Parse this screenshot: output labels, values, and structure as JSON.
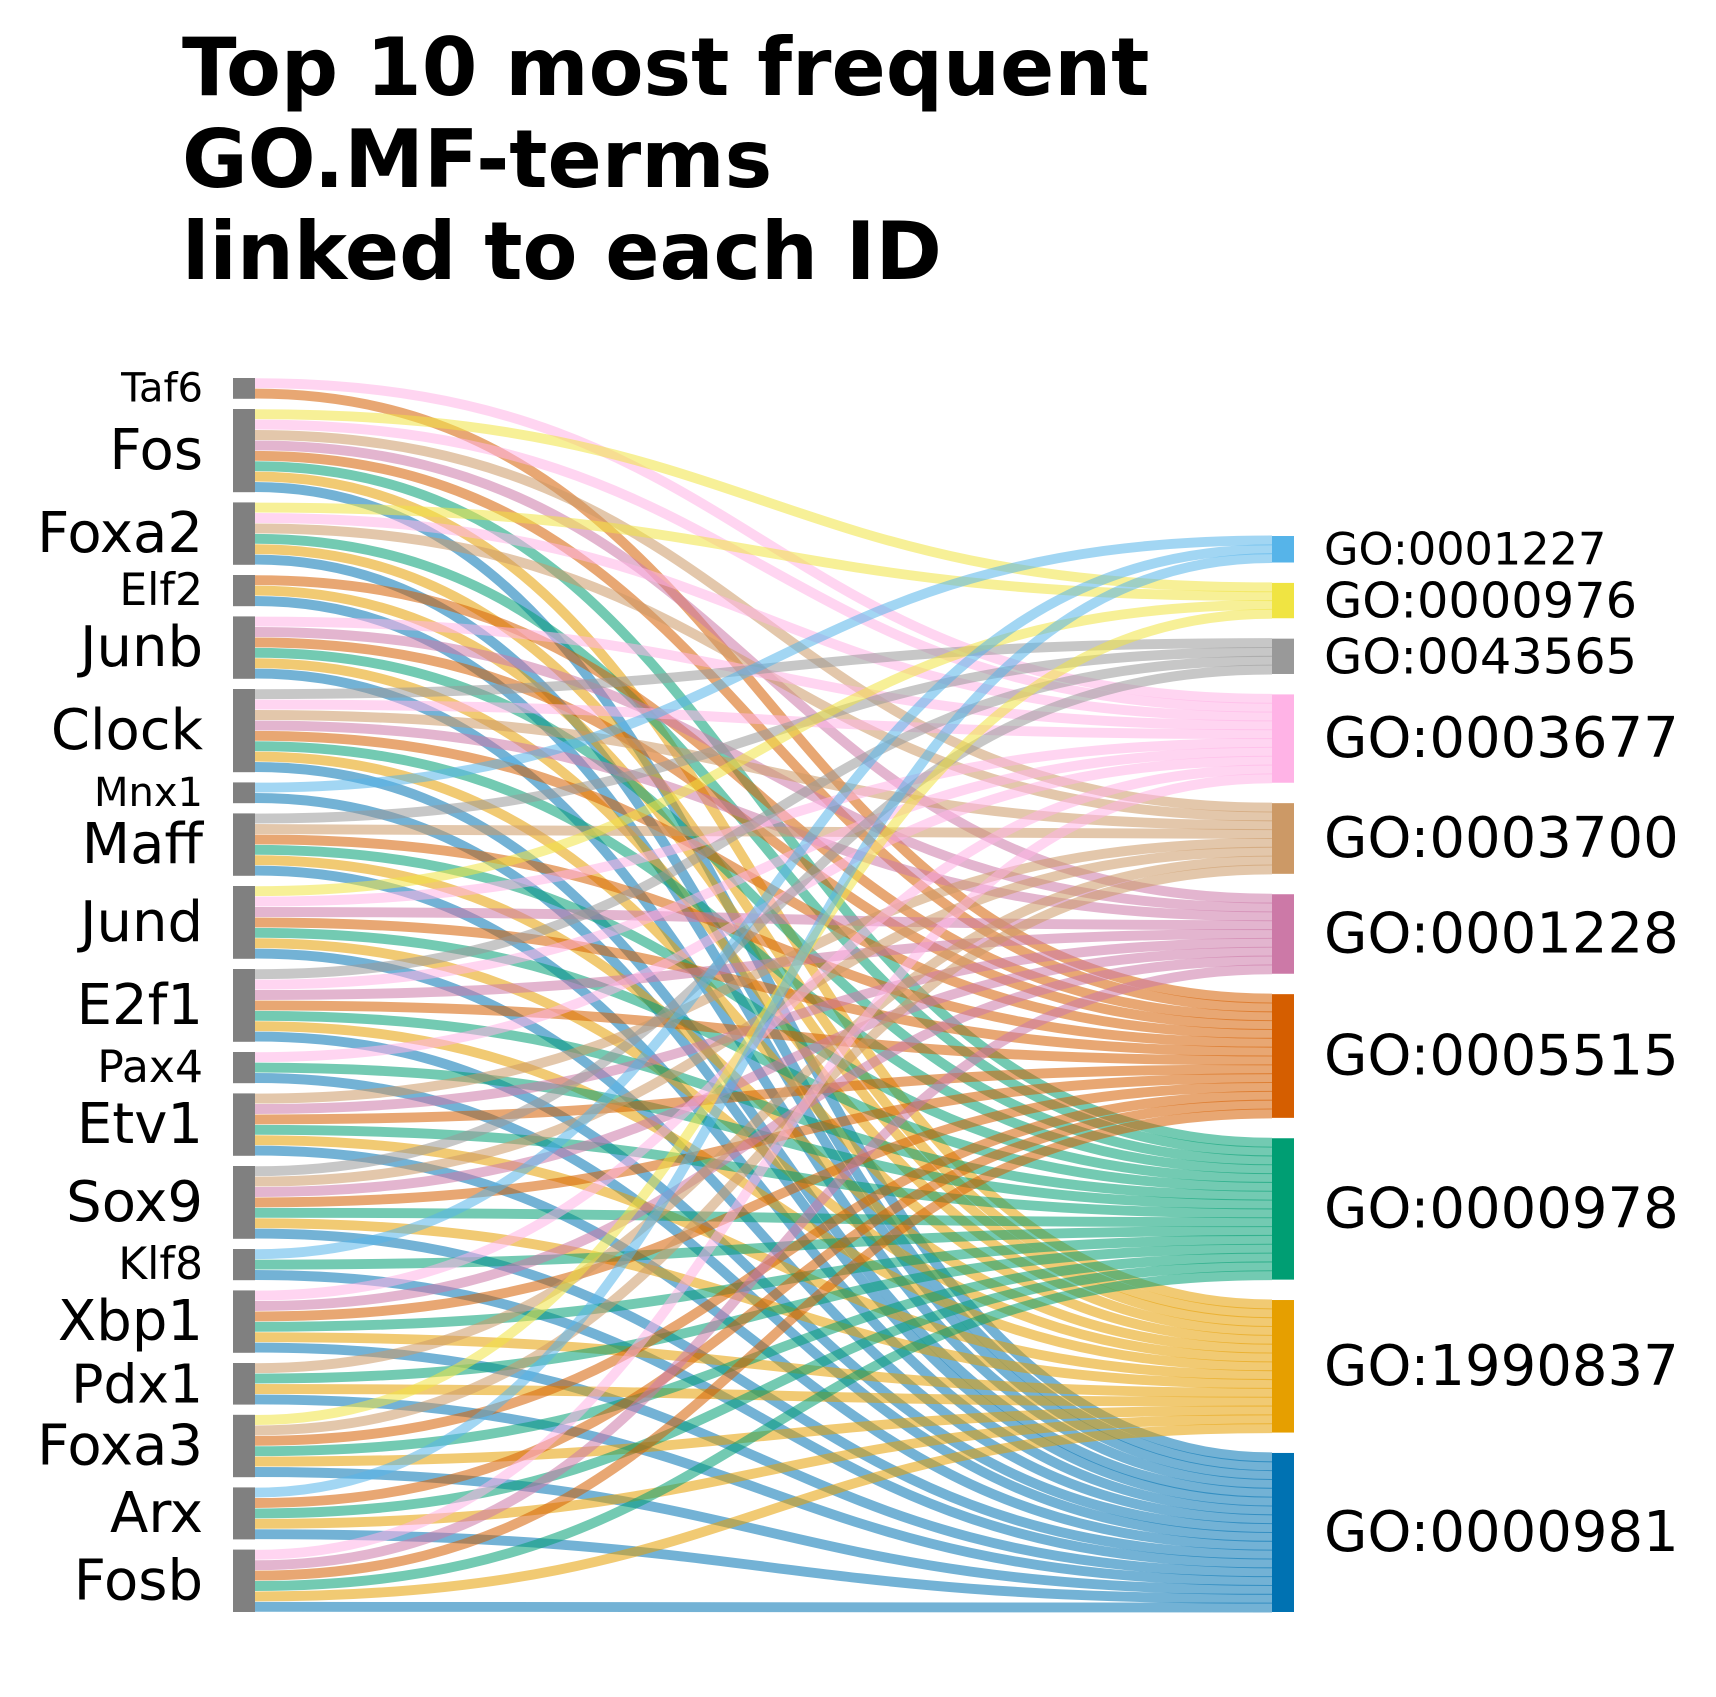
{
  "chart_data": {
    "type": "sankey",
    "title": "Top 10 most frequent\nGO.MF-terms\nlinked to each ID",
    "legend": "none",
    "grid": false,
    "source_color": "#808080",
    "sources": [
      "Taf6",
      "Fos",
      "Foxa2",
      "Elf2",
      "Junb",
      "Clock",
      "Mnx1",
      "Maff",
      "Jund",
      "E2f1",
      "Pax4",
      "Etv1",
      "Sox9",
      "Klf8",
      "Xbp1",
      "Pdx1",
      "Foxa3",
      "Arx",
      "Fosb"
    ],
    "targets": [
      {
        "name": "GO:0001227",
        "color": "#56B4E9"
      },
      {
        "name": "GO:0000976",
        "color": "#F0E442"
      },
      {
        "name": "GO:0043565",
        "color": "#999999"
      },
      {
        "name": "GO:0003677",
        "color": "#FFB3E6"
      },
      {
        "name": "GO:0003700",
        "color": "#CC9966"
      },
      {
        "name": "GO:0001228",
        "color": "#CC79A7"
      },
      {
        "name": "GO:0005515",
        "color": "#D55E00"
      },
      {
        "name": "GO:0000978",
        "color": "#009E73"
      },
      {
        "name": "GO:1990837",
        "color": "#E69F00"
      },
      {
        "name": "GO:0000981",
        "color": "#0072B2"
      }
    ],
    "links": [
      {
        "source": "Taf6",
        "targets": [
          "GO:0003677",
          "GO:0005515"
        ]
      },
      {
        "source": "Fos",
        "targets": [
          "GO:0000976",
          "GO:0003677",
          "GO:0003700",
          "GO:0001228",
          "GO:0005515",
          "GO:0000978",
          "GO:1990837",
          "GO:0000981"
        ]
      },
      {
        "source": "Foxa2",
        "targets": [
          "GO:0000976",
          "GO:0003677",
          "GO:0003700",
          "GO:0000978",
          "GO:1990837",
          "GO:0000981"
        ]
      },
      {
        "source": "Elf2",
        "targets": [
          "GO:0005515",
          "GO:1990837",
          "GO:0000981"
        ]
      },
      {
        "source": "Junb",
        "targets": [
          "GO:0003677",
          "GO:0001228",
          "GO:0005515",
          "GO:0000978",
          "GO:1990837",
          "GO:0000981"
        ]
      },
      {
        "source": "Clock",
        "targets": [
          "GO:0043565",
          "GO:0003677",
          "GO:0003700",
          "GO:0001228",
          "GO:0005515",
          "GO:0000978",
          "GO:1990837",
          "GO:0000981"
        ]
      },
      {
        "source": "Mnx1",
        "targets": [
          "GO:0001227",
          "GO:0000981"
        ]
      },
      {
        "source": "Maff",
        "targets": [
          "GO:0043565",
          "GO:0003700",
          "GO:0005515",
          "GO:0000978",
          "GO:1990837",
          "GO:0000981"
        ]
      },
      {
        "source": "Jund",
        "targets": [
          "GO:0000976",
          "GO:0003677",
          "GO:0001228",
          "GO:0005515",
          "GO:0000978",
          "GO:1990837",
          "GO:0000981"
        ]
      },
      {
        "source": "E2f1",
        "targets": [
          "GO:0043565",
          "GO:0003677",
          "GO:0001228",
          "GO:0005515",
          "GO:0000978",
          "GO:1990837",
          "GO:0000981"
        ]
      },
      {
        "source": "Pax4",
        "targets": [
          "GO:0003677",
          "GO:0000978",
          "GO:0000981"
        ]
      },
      {
        "source": "Etv1",
        "targets": [
          "GO:0003700",
          "GO:0001228",
          "GO:0005515",
          "GO:0000978",
          "GO:1990837",
          "GO:0000981"
        ]
      },
      {
        "source": "Sox9",
        "targets": [
          "GO:0043565",
          "GO:0003700",
          "GO:0001228",
          "GO:0005515",
          "GO:0000978",
          "GO:1990837",
          "GO:0000981"
        ]
      },
      {
        "source": "Klf8",
        "targets": [
          "GO:0001227",
          "GO:0000978",
          "GO:0000981"
        ]
      },
      {
        "source": "Xbp1",
        "targets": [
          "GO:0003677",
          "GO:0001228",
          "GO:0005515",
          "GO:0000978",
          "GO:1990837",
          "GO:0000981"
        ]
      },
      {
        "source": "Pdx1",
        "targets": [
          "GO:0003700",
          "GO:0000978",
          "GO:1990837",
          "GO:0000981"
        ]
      },
      {
        "source": "Foxa3",
        "targets": [
          "GO:0000976",
          "GO:0003700",
          "GO:0005515",
          "GO:0000978",
          "GO:1990837",
          "GO:0000981"
        ]
      },
      {
        "source": "Arx",
        "targets": [
          "GO:0001227",
          "GO:0005515",
          "GO:0000978",
          "GO:1990837",
          "GO:0000981"
        ]
      },
      {
        "source": "Fosb",
        "targets": [
          "GO:0003677",
          "GO:0001228",
          "GO:0005515",
          "GO:0000978",
          "GO:1990837",
          "GO:0000981"
        ]
      }
    ]
  }
}
